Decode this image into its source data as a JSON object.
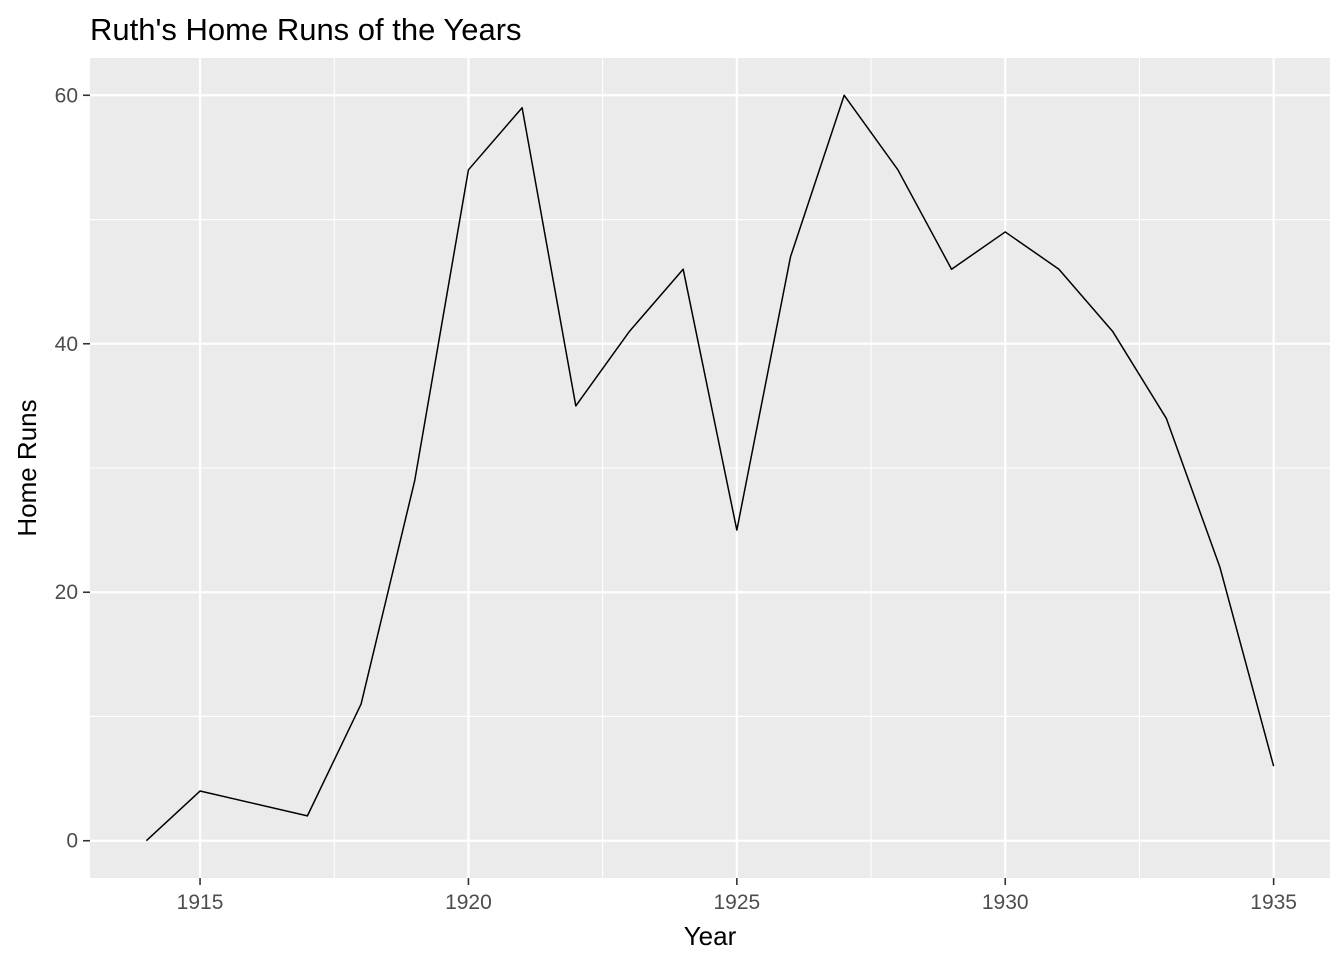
{
  "chart_data": {
    "type": "line",
    "title": "Ruth's Home Runs of the Years",
    "xlabel": "Year",
    "ylabel": "Home Runs",
    "xlim": [
      1912.95,
      1936.05
    ],
    "ylim": [
      -3,
      63
    ],
    "x_ticks": [
      1915,
      1920,
      1925,
      1930,
      1935
    ],
    "x_minor_ticks": [
      1917.5,
      1922.5,
      1927.5,
      1932.5
    ],
    "y_ticks": [
      0,
      20,
      40,
      60
    ],
    "y_minor_ticks": [
      10,
      30,
      50
    ],
    "grid": true,
    "legend": "none",
    "colors": {
      "panel": "#ebebeb",
      "grid": "#ffffff",
      "line": "#000000",
      "tick_label": "#4d4d4d"
    },
    "series": [
      {
        "x": [
          1914,
          1915,
          1916,
          1917,
          1918,
          1919,
          1920,
          1921,
          1922,
          1923,
          1924,
          1925,
          1926,
          1927,
          1928,
          1929,
          1930,
          1931,
          1932,
          1933,
          1934,
          1935
        ],
        "values": [
          0,
          4,
          3,
          2,
          11,
          29,
          54,
          59,
          35,
          41,
          46,
          25,
          47,
          60,
          54,
          46,
          49,
          46,
          41,
          34,
          22,
          6
        ]
      }
    ]
  }
}
